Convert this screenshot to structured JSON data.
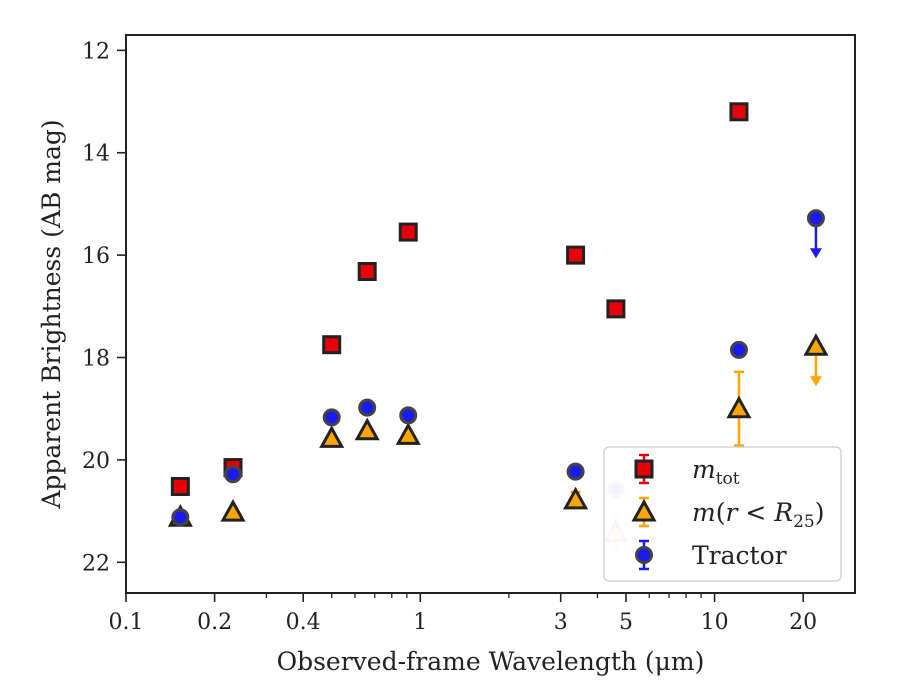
{
  "chart_data": {
    "type": "scatter",
    "title": "",
    "xlabel": "Observed-frame Wavelength (μm)",
    "ylabel": "Apparent Brightness (AB mag)",
    "xscale": "log",
    "xlim": [
      0.1,
      30
    ],
    "ylim": [
      22.6,
      11.7
    ],
    "y_inverted": true,
    "x_ticks": [
      0.1,
      0.2,
      0.4,
      1,
      3,
      5,
      10,
      20
    ],
    "x_tick_labels": [
      "0.1",
      "0.2",
      "0.4",
      "1",
      "3",
      "5",
      "10",
      "20"
    ],
    "y_ticks": [
      12,
      14,
      16,
      18,
      20,
      22
    ],
    "y_tick_labels": [
      "12",
      "14",
      "16",
      "18",
      "20",
      "22"
    ],
    "grid": false,
    "legend_position": "bottom-right",
    "series": [
      {
        "name": "m_tot",
        "legend_main": "m",
        "legend_sub": "tot",
        "legend_suffix": "",
        "marker": "square",
        "color": "#e8000b",
        "edge": "#222222",
        "points": [
          {
            "x": 0.153,
            "y": 20.52,
            "err": 0.05
          },
          {
            "x": 0.231,
            "y": 20.15,
            "err": 0.08
          },
          {
            "x": 0.5,
            "y": 17.75,
            "err": 0.03
          },
          {
            "x": 0.66,
            "y": 16.32,
            "err": 0.03
          },
          {
            "x": 0.91,
            "y": 15.55,
            "err": 0.03
          },
          {
            "x": 3.37,
            "y": 16.0,
            "err": 0.03
          },
          {
            "x": 4.62,
            "y": 17.05,
            "err": 0.03
          },
          {
            "x": 12.1,
            "y": 13.2,
            "err": 0.03
          }
        ]
      },
      {
        "name": "m(r < R25)",
        "legend_main": "m",
        "legend_sub": "25",
        "legend_suffix": "(r < R",
        "marker": "triangle",
        "color": "#ffa500",
        "edge": "#222222",
        "points": [
          {
            "x": 0.153,
            "y": 21.12,
            "err": 0.05
          },
          {
            "x": 0.231,
            "y": 21.02,
            "err": 0.05
          },
          {
            "x": 0.5,
            "y": 19.58,
            "err": 0.03
          },
          {
            "x": 0.66,
            "y": 19.43,
            "err": 0.03
          },
          {
            "x": 0.91,
            "y": 19.52,
            "err": 0.03
          },
          {
            "x": 3.37,
            "y": 20.78,
            "err": 0.15
          },
          {
            "x": 4.62,
            "y": 21.42,
            "err": 0.35,
            "faded": true
          },
          {
            "x": 12.1,
            "y": 19.0,
            "err": 0.72
          },
          {
            "x": 22.1,
            "y": 17.78,
            "upper_limit": true
          }
        ]
      },
      {
        "name": "Tractor",
        "legend_main": "Tractor",
        "legend_sub": "",
        "legend_suffix": "",
        "marker": "circle",
        "color": "#1a1af5",
        "edge": "#444444",
        "points": [
          {
            "x": 0.153,
            "y": 21.12,
            "err": 0.05
          },
          {
            "x": 0.231,
            "y": 20.28,
            "err": 0.05
          },
          {
            "x": 0.5,
            "y": 19.17,
            "err": 0.03
          },
          {
            "x": 0.66,
            "y": 18.98,
            "err": 0.03
          },
          {
            "x": 0.91,
            "y": 19.13,
            "err": 0.03
          },
          {
            "x": 3.37,
            "y": 20.23,
            "err": 0.05
          },
          {
            "x": 4.62,
            "y": 20.58,
            "err": 0.05,
            "faded": true
          },
          {
            "x": 12.1,
            "y": 17.85,
            "err": 0.03
          },
          {
            "x": 22.1,
            "y": 15.28,
            "upper_limit": true
          }
        ]
      }
    ]
  }
}
